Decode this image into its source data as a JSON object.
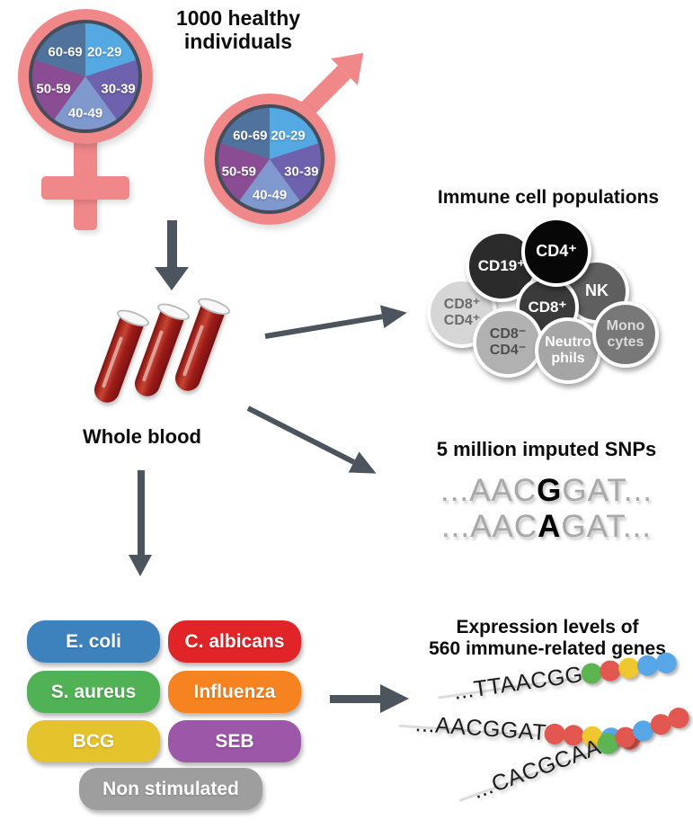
{
  "header": {
    "title": "1000 healthy\nindividuals"
  },
  "palette": {
    "symbol_pink": "#F0888A",
    "pie_ring": "#454D5B",
    "arrow_gray": "#4C545E",
    "blood_red": "#A81E1E"
  },
  "demographics": {
    "age_groups": [
      {
        "label": "20-29",
        "color": "#55A9E3"
      },
      {
        "label": "30-39",
        "color": "#6E61AD"
      },
      {
        "label": "40-49",
        "color": "#7F98CE"
      },
      {
        "label": "50-59",
        "color": "#8A4D94"
      },
      {
        "label": "60-69",
        "color": "#50739E"
      }
    ]
  },
  "whole_blood": {
    "label": "Whole blood"
  },
  "immune_cells": {
    "title": "Immune cell populations",
    "cells": [
      {
        "label": "CD19⁺",
        "color": "#2B2B2B",
        "text_color": "#FFFFFF"
      },
      {
        "label": "CD4⁺",
        "color": "#070707",
        "text_color": "#FFFFFF"
      },
      {
        "label": "NK",
        "color": "#5F5F5F",
        "text_color": "#FFFFFF"
      },
      {
        "label": "CD8⁺",
        "color": "#3A3A3A",
        "text_color": "#FFFFFF"
      },
      {
        "label": "CD8⁺\nCD4⁺",
        "color": "#D6D6D6",
        "text_color": "#6A6A6A"
      },
      {
        "label": "CD8⁻\nCD4⁻",
        "color": "#B1B1B1",
        "text_color": "#4E4E4E"
      },
      {
        "label": "Neutro\nphils",
        "color": "#A5A5A5",
        "text_color": "#FFFFFF"
      },
      {
        "label": "Mono\ncytes",
        "color": "#787878",
        "text_color": "#DBDBDB"
      }
    ]
  },
  "snps": {
    "title": "5 million imputed SNPs",
    "sequences": [
      {
        "prefix": "...AAC",
        "variant": "G",
        "suffix": "GAT..."
      },
      {
        "prefix": "...AAC",
        "variant": "A",
        "suffix": "GAT..."
      }
    ]
  },
  "stimulations": {
    "items": [
      {
        "label": "E. coli",
        "color": "#3E82BD"
      },
      {
        "label": "C. albicans",
        "color": "#E02428"
      },
      {
        "label": "S. aureus",
        "color": "#50B254"
      },
      {
        "label": "Influenza",
        "color": "#F6831F"
      },
      {
        "label": "BCG",
        "color": "#E5C32D"
      },
      {
        "label": "SEB",
        "color": "#9C57A8"
      },
      {
        "label": "Non stimulated",
        "color": "#9E9E9E"
      }
    ]
  },
  "expression": {
    "title": "Expression levels of\n560 immune-related genes",
    "strands": [
      {
        "sequence": "...TTAACGG",
        "dots": [
          "#5CB551",
          "#E2574F",
          "#EFC72F",
          "#57A7E8",
          "#57A7E8"
        ]
      },
      {
        "sequence": "...AACGGAT",
        "dots": [
          "#E2574F",
          "#E2574F",
          "#EFC72F",
          "#57A7E8",
          "#E2574F"
        ]
      },
      {
        "sequence": "...CACGCAA",
        "dots": [
          "#5CB551",
          "#E2574F",
          "#57A7E8",
          "#E2574F",
          "#E2574F"
        ]
      }
    ]
  }
}
